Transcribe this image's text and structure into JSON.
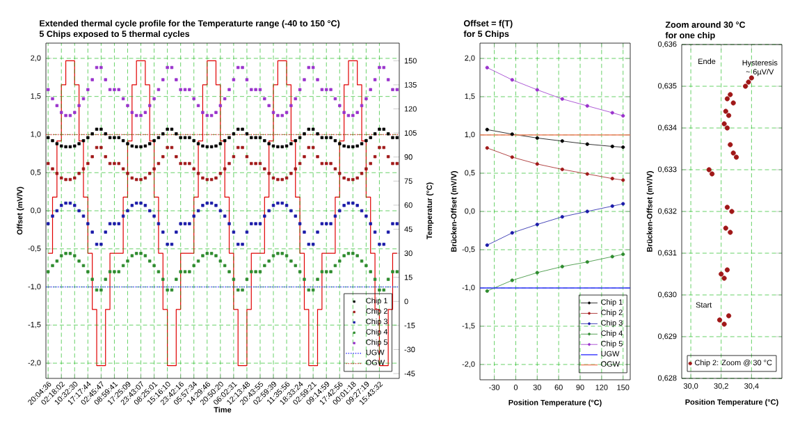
{
  "chart_data": [
    {
      "type": "scatter",
      "title": "Extended thermal cycle profile for the Temperaturte range (-40 to 150 °C)",
      "subtitle": "5 Chips exposed to 5 thermal cycles",
      "xlabel": "Time",
      "ylabel": "Offset (mV/V)",
      "y2label": "Temperatur (°C)",
      "categories": [
        "20:04:36",
        null,
        null,
        "02:18:02",
        null,
        null,
        "10:32:30",
        null,
        null,
        "17:17:44",
        null,
        null,
        "02:45:47",
        null,
        null,
        "08:59:41",
        null,
        null,
        "17:25:09",
        null,
        null,
        "23:43:07",
        null,
        null,
        "08:25:01",
        null,
        null,
        "15:16:10",
        null,
        null,
        "23:42:16",
        null,
        null,
        "05:57:34",
        null,
        null,
        "14:29:46",
        null,
        null,
        "20:50:20",
        null,
        null,
        "06:02:31",
        null,
        null,
        "12:13:48",
        null,
        null,
        "20:43:55",
        null,
        null,
        "02:59:39",
        null,
        null,
        "11:35:56",
        null,
        null,
        "18:33:24",
        null,
        null,
        "02:59:21",
        null,
        null,
        "09:14:59",
        null,
        null,
        "17:42:56",
        null,
        null,
        "00:01:18",
        null,
        null,
        "09:27:19",
        null,
        null,
        "15:43:32",
        null,
        null,
        null,
        null
      ],
      "series": [
        {
          "name": "Chip 1",
          "color": "#000000",
          "values": [
            0.96,
            0.92,
            0.88,
            0.85,
            0.84,
            0.84,
            0.85,
            0.88,
            0.92,
            0.96,
            1.01,
            1.07,
            1.07,
            1.01,
            0.96,
            0.96,
            0.96,
            0.92,
            0.88,
            0.85,
            0.84,
            0.84,
            0.85,
            0.88,
            0.92,
            0.96,
            1.01,
            1.07,
            1.07,
            1.01,
            0.96,
            0.96,
            0.96,
            0.92,
            0.88,
            0.85,
            0.84,
            0.84,
            0.85,
            0.88,
            0.92,
            0.96,
            1.01,
            1.07,
            1.07,
            1.01,
            0.96,
            0.96,
            0.96,
            0.92,
            0.88,
            0.85,
            0.84,
            0.84,
            0.85,
            0.88,
            0.92,
            0.96,
            1.01,
            1.07,
            1.07,
            1.01,
            0.96,
            0.96,
            0.96,
            0.92,
            0.88,
            0.85,
            0.84,
            0.84,
            0.85,
            0.88,
            0.92,
            0.96,
            1.01,
            1.07,
            1.07,
            1.01,
            0.96,
            0.96
          ]
        },
        {
          "name": "Chip 2",
          "color": "#a01818",
          "values": [
            0.62,
            0.55,
            0.49,
            0.43,
            0.41,
            0.41,
            0.43,
            0.49,
            0.55,
            0.62,
            0.71,
            0.83,
            0.83,
            0.71,
            0.62,
            0.62,
            0.62,
            0.55,
            0.49,
            0.43,
            0.41,
            0.41,
            0.43,
            0.49,
            0.55,
            0.62,
            0.71,
            0.83,
            0.83,
            0.71,
            0.62,
            0.62,
            0.62,
            0.55,
            0.49,
            0.43,
            0.41,
            0.41,
            0.43,
            0.49,
            0.55,
            0.62,
            0.71,
            0.83,
            0.83,
            0.71,
            0.62,
            0.62,
            0.62,
            0.55,
            0.49,
            0.43,
            0.41,
            0.41,
            0.43,
            0.49,
            0.55,
            0.62,
            0.71,
            0.83,
            0.83,
            0.71,
            0.62,
            0.62,
            0.62,
            0.55,
            0.49,
            0.43,
            0.41,
            0.41,
            0.43,
            0.49,
            0.55,
            0.62,
            0.71,
            0.83,
            0.83,
            0.71,
            0.62,
            0.62
          ]
        },
        {
          "name": "Chip 3",
          "color": "#1a1aa8",
          "values": [
            -0.17,
            -0.07,
            0.0,
            0.07,
            0.1,
            0.1,
            0.07,
            0.0,
            -0.07,
            -0.17,
            -0.28,
            -0.44,
            -0.44,
            -0.28,
            -0.17,
            -0.17,
            -0.17,
            -0.07,
            0.0,
            0.07,
            0.1,
            0.1,
            0.07,
            0.0,
            -0.07,
            -0.17,
            -0.28,
            -0.44,
            -0.44,
            -0.28,
            -0.17,
            -0.17,
            -0.17,
            -0.07,
            0.0,
            0.07,
            0.1,
            0.1,
            0.07,
            0.0,
            -0.07,
            -0.17,
            -0.28,
            -0.44,
            -0.44,
            -0.28,
            -0.17,
            -0.17,
            -0.17,
            -0.07,
            0.0,
            0.07,
            0.1,
            0.1,
            0.07,
            0.0,
            -0.07,
            -0.17,
            -0.28,
            -0.44,
            -0.44,
            -0.28,
            -0.17,
            -0.17,
            -0.17,
            -0.07,
            0.0,
            0.07,
            0.1,
            0.1,
            0.07,
            0.0,
            -0.07,
            -0.17,
            -0.28,
            -0.44,
            -0.44,
            -0.28,
            -0.17,
            -0.17
          ]
        },
        {
          "name": "Chip 4",
          "color": "#2e8b2e",
          "values": [
            -0.8,
            -0.72,
            -0.66,
            -0.59,
            -0.56,
            -0.56,
            -0.59,
            -0.66,
            -0.72,
            -0.8,
            -0.9,
            -1.04,
            -1.04,
            -0.9,
            -0.8,
            -0.8,
            -0.8,
            -0.72,
            -0.66,
            -0.59,
            -0.56,
            -0.56,
            -0.59,
            -0.66,
            -0.72,
            -0.8,
            -0.9,
            -1.04,
            -1.04,
            -0.9,
            -0.8,
            -0.8,
            -0.8,
            -0.72,
            -0.66,
            -0.59,
            -0.56,
            -0.56,
            -0.59,
            -0.66,
            -0.72,
            -0.8,
            -0.9,
            -1.04,
            -1.04,
            -0.9,
            -0.8,
            -0.8,
            -0.8,
            -0.72,
            -0.66,
            -0.59,
            -0.56,
            -0.56,
            -0.59,
            -0.66,
            -0.72,
            -0.8,
            -0.9,
            -1.04,
            -1.04,
            -0.9,
            -0.8,
            -0.8,
            -0.8,
            -0.72,
            -0.66,
            -0.59,
            -0.56,
            -0.56,
            -0.59,
            -0.66,
            -0.72,
            -0.8,
            -0.9,
            -1.04,
            -1.04,
            -0.9,
            -0.8,
            -0.8
          ]
        },
        {
          "name": "Chip 5",
          "color": "#9932cc",
          "values": [
            1.59,
            1.47,
            1.38,
            1.29,
            1.25,
            1.25,
            1.29,
            1.38,
            1.47,
            1.59,
            1.72,
            1.88,
            1.88,
            1.72,
            1.59,
            1.59,
            1.59,
            1.47,
            1.38,
            1.29,
            1.25,
            1.25,
            1.29,
            1.38,
            1.47,
            1.59,
            1.72,
            1.88,
            1.88,
            1.72,
            1.59,
            1.59,
            1.59,
            1.47,
            1.38,
            1.29,
            1.25,
            1.25,
            1.29,
            1.38,
            1.47,
            1.59,
            1.72,
            1.88,
            1.88,
            1.72,
            1.59,
            1.59,
            1.59,
            1.47,
            1.38,
            1.29,
            1.25,
            1.25,
            1.29,
            1.38,
            1.47,
            1.59,
            1.72,
            1.88,
            1.88,
            1.72,
            1.59,
            1.59,
            1.59,
            1.47,
            1.38,
            1.29,
            1.25,
            1.25,
            1.29,
            1.38,
            1.47,
            1.59,
            1.72,
            1.88,
            1.88,
            1.72,
            1.59,
            1.59
          ]
        },
        {
          "type": "step",
          "axis": "y2",
          "marker": "none",
          "color": "#e00000",
          "values": [
            30,
            65,
            100,
            135,
            150,
            150,
            135,
            100,
            65,
            30,
            -5,
            -40,
            -40,
            -5,
            30,
            30,
            30,
            65,
            100,
            135,
            150,
            150,
            135,
            100,
            65,
            30,
            -5,
            -40,
            -40,
            -5,
            30,
            30,
            30,
            65,
            100,
            135,
            150,
            150,
            135,
            100,
            65,
            30,
            -5,
            -40,
            -40,
            -5,
            30,
            30,
            30,
            65,
            100,
            135,
            150,
            150,
            135,
            100,
            65,
            30,
            -5,
            -40,
            -40,
            -5,
            30,
            30,
            30,
            65,
            100,
            135,
            150,
            150,
            135,
            100,
            65,
            30,
            -5,
            -40,
            -40,
            -5,
            30,
            30
          ]
        }
      ],
      "ref_lines": [
        {
          "axis": "y",
          "value": -1.0,
          "label": "UGW",
          "color": "#3030ff",
          "line_style": "dotted"
        },
        {
          "axis": "y",
          "value": 1.0,
          "label": "OGW",
          "color": "#e03030",
          "line_style": "dotted"
        }
      ],
      "ylim": [
        -2.2,
        2.2
      ],
      "yticks": [
        {
          "value": -2.0,
          "label": "-2,0"
        },
        {
          "value": -1.5,
          "label": "-1,5"
        },
        {
          "value": -1.0,
          "label": "-1,0"
        },
        {
          "value": -0.5,
          "label": "-0,5"
        },
        {
          "value": 0.0,
          "label": "0,0"
        },
        {
          "value": 0.5,
          "label": "0,5"
        },
        {
          "value": 1.0,
          "label": "1,0"
        },
        {
          "value": 1.5,
          "label": "1,5"
        },
        {
          "value": 2.0,
          "label": "2,0"
        }
      ],
      "y2lim": [
        -48,
        161
      ],
      "y2ticks": [
        -45,
        -30,
        -15,
        0,
        15,
        30,
        45,
        60,
        75,
        90,
        105,
        120,
        135,
        150
      ],
      "marker": "square",
      "grid": true,
      "legend": "bottom right"
    },
    {
      "type": "line",
      "title": "Offset = f(T)",
      "subtitle": "for 5 Chips",
      "xlabel": "Position Temperature (°C)",
      "ylabel": "Brücken-Offset (mV/V)",
      "x": [
        -40,
        -5,
        30,
        65,
        100,
        135,
        150
      ],
      "series": [
        {
          "name": "Chip 1",
          "color": "#000000",
          "values": [
            1.07,
            1.01,
            0.96,
            0.92,
            0.88,
            0.85,
            0.84
          ]
        },
        {
          "name": "Chip 2",
          "color": "#a01818",
          "values": [
            0.83,
            0.71,
            0.62,
            0.55,
            0.49,
            0.43,
            0.41
          ]
        },
        {
          "name": "Chip 3",
          "color": "#1a1aa8",
          "values": [
            -0.44,
            -0.28,
            -0.17,
            -0.07,
            0.0,
            0.07,
            0.1
          ]
        },
        {
          "name": "Chip 4",
          "color": "#2e8b2e",
          "values": [
            -1.04,
            -0.9,
            -0.8,
            -0.72,
            -0.66,
            -0.59,
            -0.56
          ]
        },
        {
          "name": "Chip 5",
          "color": "#9932cc",
          "values": [
            1.88,
            1.72,
            1.59,
            1.47,
            1.38,
            1.29,
            1.25
          ]
        }
      ],
      "ref_lines": [
        {
          "axis": "y",
          "value": -1.0,
          "label": "UGW",
          "color": "#3030ff",
          "line_style": "solid"
        },
        {
          "axis": "y",
          "value": 1.0,
          "label": "OGW",
          "color": "#f08060",
          "line_style": "solid"
        }
      ],
      "xlim": [
        -50,
        160
      ],
      "xticks": [
        -30,
        0,
        30,
        60,
        90,
        120,
        150
      ],
      "ylim": [
        -2.2,
        2.2
      ],
      "yticks": [
        {
          "value": -2.0,
          "label": "-2,0"
        },
        {
          "value": -1.5,
          "label": "-1,5"
        },
        {
          "value": -1.0,
          "label": "-1,0"
        },
        {
          "value": -0.5,
          "label": "-0,5"
        },
        {
          "value": 0.0,
          "label": "0,0"
        },
        {
          "value": 0.5,
          "label": "0,5"
        },
        {
          "value": 1.0,
          "label": "1,0"
        },
        {
          "value": 1.5,
          "label": "1,5"
        },
        {
          "value": 2.0,
          "label": "2,0"
        }
      ],
      "marker": "circle",
      "grid": true,
      "legend": "bottom right"
    },
    {
      "type": "scatter",
      "title": "Zoom around 30 °C",
      "subtitle": "for one chip",
      "xlabel": "Position Temperature (°C)",
      "ylabel": "Brücken-Offset (mV/V)",
      "series": [
        {
          "name": "Chip 2: Zoom @ 30 °C",
          "color": "#a01818",
          "x": [
            30.36,
            30.38,
            30.4,
            30.24,
            30.26,
            30.28,
            30.23,
            30.25,
            30.22,
            30.24,
            30.26,
            30.28,
            30.3,
            30.12,
            30.14,
            30.24,
            30.27,
            30.23,
            30.26,
            30.2,
            30.22,
            30.24,
            30.19,
            30.22,
            30.25
          ],
          "values": [
            0.635,
            0.6351,
            0.6352,
            0.6347,
            0.6348,
            0.6346,
            0.6344,
            0.6343,
            0.6341,
            0.634,
            0.6336,
            0.6334,
            0.6333,
            0.633,
            0.6329,
            0.6321,
            0.632,
            0.6316,
            0.6315,
            0.6305,
            0.6304,
            0.6306,
            0.6294,
            0.6293,
            0.6295
          ]
        }
      ],
      "annotations": [
        "Ende",
        "Hysteresis ~ 6µV/V",
        "Start"
      ],
      "xlim": [
        29.94,
        30.6
      ],
      "xticks": [
        {
          "value": 30.0,
          "label": "30,0"
        },
        {
          "value": 30.2,
          "label": "30,2"
        },
        {
          "value": 30.4,
          "label": "30,4"
        }
      ],
      "ylim": [
        0.628,
        0.636
      ],
      "yticks": [
        {
          "value": 0.628,
          "label": "0,628"
        },
        {
          "value": 0.629,
          "label": "0,629"
        },
        {
          "value": 0.63,
          "label": "0,630"
        },
        {
          "value": 0.631,
          "label": "0,631"
        },
        {
          "value": 0.632,
          "label": "0,632"
        },
        {
          "value": 0.633,
          "label": "0,633"
        },
        {
          "value": 0.634,
          "label": "0,634"
        },
        {
          "value": 0.635,
          "label": "0,635"
        },
        {
          "value": 0.636,
          "label": "0,636"
        }
      ],
      "marker": "circle",
      "grid": true,
      "legend": "bottom"
    }
  ]
}
